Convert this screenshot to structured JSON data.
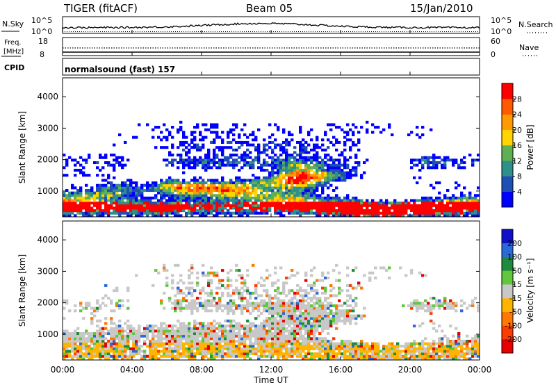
{
  "header": {
    "radar": "TIGER (fitACF)",
    "beam": "Beam 05",
    "date": "15/Jan/2010"
  },
  "noise_panel": {
    "left_label": "N.Sky",
    "right_label": "N.Search",
    "ticks_left": [
      "10^5",
      "10^0"
    ],
    "ticks_right": [
      "10^5",
      "10^0"
    ]
  },
  "freq_panel": {
    "left_label_line1": "Freq.",
    "left_label_line2": "[MHz]",
    "right_label": "Nave",
    "ticks_left": [
      "18",
      "8"
    ],
    "ticks_right": [
      "60",
      "0"
    ]
  },
  "cpid": {
    "label": "CPID",
    "program": "normalsound (fast) 157"
  },
  "chart_data": [
    {
      "type": "heatmap",
      "name": "power",
      "ylabel": "Slant Range [km]",
      "yticks": [
        "1000",
        "2000",
        "3000",
        "4000"
      ],
      "ylim": [
        180,
        4600
      ],
      "colorbar": {
        "label": "Power [dB]",
        "ticks": [
          "4",
          "8",
          "12",
          "16",
          "20",
          "24",
          "28"
        ],
        "colors": [
          "#0000ff",
          "#1e50b4",
          "#2f8f8a",
          "#5fb052",
          "#ffd400",
          "#ff9a00",
          "#ff5a00",
          "#ff0000"
        ]
      }
    },
    {
      "type": "heatmap",
      "name": "velocity",
      "ylabel": "Slant Range [km]",
      "yticks": [
        "1000",
        "2000",
        "3000",
        "4000"
      ],
      "ylim": [
        180,
        4600
      ],
      "colorbar": {
        "label": "Velocity [m s⁻¹]",
        "ticks": [
          "200",
          "100",
          "50",
          "15",
          "-15",
          "-50",
          "-100",
          "-200"
        ],
        "colors": [
          "#1010c8",
          "#2a6ad8",
          "#1e8a3c",
          "#60c83a",
          "#c8c8c8",
          "#ffb400",
          "#ff7800",
          "#ff3c00",
          "#e60000"
        ]
      }
    }
  ],
  "xaxis": {
    "label": "Time UT",
    "ticks": [
      "00:00",
      "04:00",
      "08:00",
      "12:00",
      "16:00",
      "20:00",
      "00:00"
    ]
  }
}
